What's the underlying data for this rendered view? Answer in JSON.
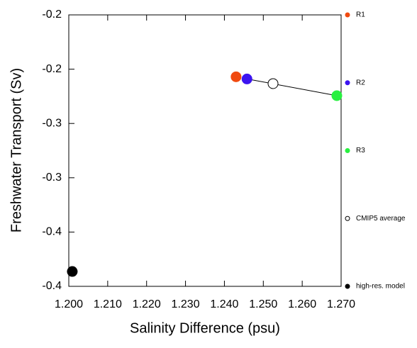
{
  "chart_data": {
    "type": "scatter",
    "xlabel": "Salinity Difference (psu)",
    "ylabel": "Freshwater Transport (Sv)",
    "xlim": [
      1.2,
      1.27
    ],
    "xticks": [
      {
        "value": 1.2,
        "label": "1.200"
      },
      {
        "value": 1.21,
        "label": "1.210"
      },
      {
        "value": 1.22,
        "label": "1.220"
      },
      {
        "value": 1.23,
        "label": "1.230"
      },
      {
        "value": 1.24,
        "label": "1.240"
      },
      {
        "value": 1.25,
        "label": "1.250"
      },
      {
        "value": 1.26,
        "label": "1.260"
      },
      {
        "value": 1.27,
        "label": "1.270"
      }
    ],
    "ylim": [
      -0.4,
      -0.15
    ],
    "yticks": [
      {
        "value": -0.15,
        "label": "-0.2"
      },
      {
        "value": -0.2,
        "label": "-0.2"
      },
      {
        "value": -0.25,
        "label": "-0.3"
      },
      {
        "value": -0.3,
        "label": "-0.3"
      },
      {
        "value": -0.35,
        "label": "-0.4"
      },
      {
        "value": -0.4,
        "label": "-0.4"
      }
    ],
    "legend": "right",
    "series": [
      {
        "name": "R1",
        "color": "#f04a10",
        "filled": true,
        "x": [
          1.243
        ],
        "values": [
          -0.207
        ]
      },
      {
        "name": "R2",
        "color": "#3c14f0",
        "filled": true,
        "x": [
          1.2458
        ],
        "values": [
          -0.209
        ]
      },
      {
        "name": "R3",
        "color": "#28f040",
        "filled": true,
        "x": [
          1.2689
        ],
        "values": [
          -0.2244
        ]
      },
      {
        "name": "CMIP5 average",
        "color": "#000000",
        "filled": false,
        "x": [
          1.2525
        ],
        "values": [
          -0.2133
        ]
      },
      {
        "name": "high-res. model",
        "color": "#000000",
        "filled": true,
        "x": [
          1.2009
        ],
        "values": [
          -0.3863
        ]
      }
    ]
  }
}
